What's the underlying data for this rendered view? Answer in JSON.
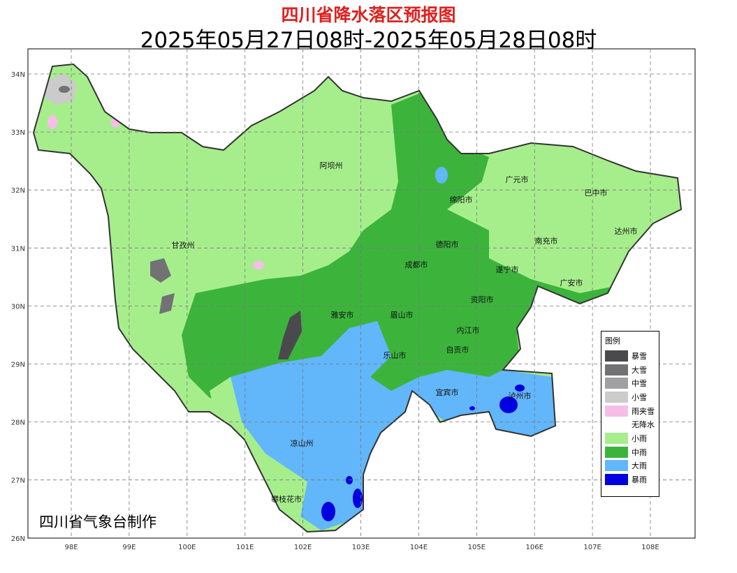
{
  "header": {
    "title": "四川省降水落区预报图",
    "subtitle": "2025年05月27日08时-2025年05月28日08时"
  },
  "axes": {
    "lon": [
      "98E",
      "99E",
      "100E",
      "101E",
      "102E",
      "103E",
      "104E",
      "105E",
      "106E",
      "107E",
      "108E"
    ],
    "lat": [
      "34N",
      "33N",
      "32N",
      "31N",
      "30N",
      "29N",
      "28N",
      "27N",
      "26N"
    ]
  },
  "regions": [
    "阿坝州",
    "甘孜州",
    "绵阳市",
    "广元市",
    "巴中市",
    "达州市",
    "南充市",
    "德阳市",
    "成都市",
    "遂宁市",
    "广安市",
    "资阳市",
    "雅安市",
    "眉山市",
    "内江市",
    "乐山市",
    "自贡市",
    "宜宾市",
    "泸州市",
    "凉山州",
    "攀枝花市"
  ],
  "legend": {
    "title": "图例",
    "items": [
      {
        "label": "暴雪",
        "color": "#4a4a4c"
      },
      {
        "label": "大雪",
        "color": "#727274"
      },
      {
        "label": "中雪",
        "color": "#a0a0a2"
      },
      {
        "label": "小雪",
        "color": "#cbcbcb"
      },
      {
        "label": "雨夹雪",
        "color": "#f7bde9"
      },
      {
        "label": "无降水",
        "color": "#ffffff"
      },
      {
        "label": "小雨",
        "color": "#a6ee8c"
      },
      {
        "label": "中雨",
        "color": "#3cb43c"
      },
      {
        "label": "大雨",
        "color": "#62b6fa"
      },
      {
        "label": "暴雨",
        "color": "#0000e0"
      }
    ]
  },
  "credit": "四川省气象台制作"
}
